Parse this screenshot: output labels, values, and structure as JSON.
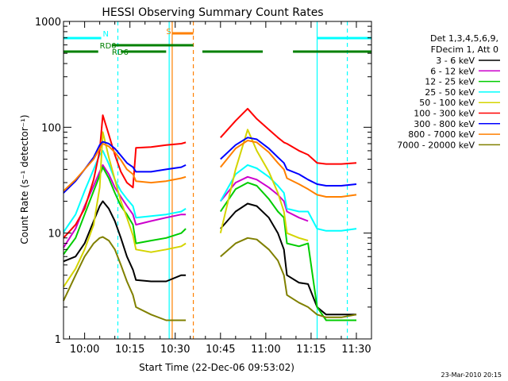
{
  "chart_data": {
    "type": "line",
    "title": "HESSI Observing Summary Count Rates",
    "xlabel": "Start Time (22-Dec-06 09:53:02)",
    "ylabel": "Count Rate (s⁻¹ detector⁻¹)",
    "yscale": "log",
    "ylim": [
      1,
      1000
    ],
    "xlim_min": [
      -7,
      95
    ],
    "grid": false,
    "legend_position": "right",
    "x_ticks": [
      {
        "t": 0,
        "label": "10:00"
      },
      {
        "t": 15,
        "label": "10:15"
      },
      {
        "t": 30,
        "label": "10:30"
      },
      {
        "t": 45,
        "label": "10:45"
      },
      {
        "t": 60,
        "label": "11:00"
      },
      {
        "t": 75,
        "label": "11:15"
      },
      {
        "t": 90,
        "label": "11:30"
      }
    ],
    "y_ticks": [
      {
        "v": 1,
        "label": "1"
      },
      {
        "v": 10,
        "label": "10"
      },
      {
        "v": 100,
        "label": "100"
      },
      {
        "v": 1000,
        "label": "1000"
      }
    ],
    "legend": {
      "header_line1": "Det 1,3,4,5,6,9,",
      "header_line2": "FDecim 1, Att 0"
    },
    "series": [
      {
        "name": "3 - 6 keV",
        "color": "#000000",
        "x": [
          -7,
          -3,
          0,
          3,
          5,
          6,
          8,
          10,
          12,
          14,
          16,
          17,
          22,
          27,
          32,
          33.5,
          36,
          40,
          43,
          45,
          50,
          54,
          57,
          61,
          64,
          66,
          67,
          71,
          74,
          77,
          80,
          85,
          90
        ],
        "y": [
          5.4,
          6,
          8,
          13,
          18,
          20,
          17,
          13,
          9,
          6,
          4.5,
          3.6,
          3.5,
          3.5,
          4,
          4,
          null,
          null,
          null,
          11,
          16,
          19,
          18,
          14,
          10,
          7,
          4,
          3.4,
          3.3,
          2,
          1.7,
          1.7,
          1.7
        ]
      },
      {
        "name": "6 - 12 keV",
        "color": "#cc00cc",
        "x": [
          -7,
          -3,
          0,
          3,
          5,
          6,
          8,
          10,
          12,
          14,
          16,
          17,
          22,
          27,
          32,
          33.5,
          36,
          40,
          43,
          45,
          50,
          54,
          57,
          61,
          64,
          66,
          67,
          71,
          74,
          77,
          80,
          85,
          90
        ],
        "y": [
          7.3,
          11,
          18,
          28,
          38,
          44,
          36,
          27,
          22,
          18,
          15,
          12,
          13,
          14,
          15,
          15,
          null,
          null,
          null,
          20,
          30,
          34,
          32,
          27,
          23,
          20,
          16,
          14,
          13,
          null,
          null,
          null,
          null
        ]
      },
      {
        "name": "12 - 25 keV",
        "color": "#00cc00",
        "x": [
          -7,
          -3,
          0,
          3,
          5,
          6,
          8,
          10,
          12,
          14,
          16,
          17,
          22,
          27,
          32,
          33.5,
          36,
          40,
          43,
          45,
          50,
          54,
          57,
          61,
          64,
          66,
          67,
          71,
          74,
          77,
          80,
          85,
          90
        ],
        "y": [
          6.3,
          9,
          15,
          25,
          35,
          42,
          33,
          24,
          18,
          15,
          12,
          8,
          8.5,
          9,
          10,
          11,
          null,
          null,
          null,
          16,
          26,
          30,
          28,
          21,
          16,
          14,
          8,
          7.5,
          8,
          2,
          1.5,
          1.5,
          1.5
        ]
      },
      {
        "name": "25 - 50 keV",
        "color": "#00ffff",
        "x": [
          -7,
          -3,
          0,
          3,
          5,
          6,
          8,
          10,
          12,
          14,
          16,
          17,
          22,
          27,
          32,
          33.5,
          36,
          40,
          43,
          45,
          50,
          54,
          57,
          61,
          64,
          66,
          67,
          71,
          74,
          77,
          80,
          85,
          90
        ],
        "y": [
          10.2,
          15,
          25,
          40,
          55,
          60,
          45,
          32,
          25,
          21,
          18,
          14,
          14.5,
          15,
          16,
          17,
          null,
          null,
          null,
          20,
          36,
          44,
          41,
          34,
          28,
          24,
          17,
          16,
          16,
          11,
          10.5,
          10.5,
          11
        ]
      },
      {
        "name": "50 - 100 keV",
        "color": "#d4d400",
        "x": [
          -7,
          -3,
          0,
          3,
          5,
          6,
          8,
          10,
          12,
          14,
          16,
          17,
          22,
          27,
          32,
          33.5,
          36,
          40,
          43,
          45,
          50,
          54,
          57,
          61,
          64,
          66,
          67,
          71,
          74,
          77,
          80,
          85,
          90
        ],
        "y": [
          3.1,
          4.6,
          7,
          12,
          27,
          90,
          52,
          32,
          20,
          14,
          9.5,
          7,
          6.6,
          7,
          7.5,
          8,
          null,
          null,
          null,
          10,
          40,
          95,
          60,
          38,
          24,
          16,
          10,
          9,
          8.5,
          null,
          null,
          null,
          null
        ]
      },
      {
        "name": "100 - 300 keV",
        "color": "#ff0000",
        "x": [
          -7,
          -3,
          0,
          3,
          5,
          6,
          8,
          10,
          12,
          14,
          16,
          17,
          22,
          27,
          32,
          33.5,
          36,
          40,
          43,
          45,
          50,
          54,
          57,
          61,
          64,
          66,
          67,
          71,
          74,
          77,
          80,
          85,
          90
        ],
        "y": [
          9,
          12,
          17,
          32,
          60,
          130,
          85,
          55,
          38,
          30,
          27,
          64,
          65,
          68,
          70,
          72,
          null,
          null,
          null,
          80,
          115,
          150,
          120,
          95,
          80,
          72,
          70,
          60,
          55,
          46,
          45,
          45,
          46
        ]
      },
      {
        "name": "300 - 800 keV",
        "color": "#0000ff",
        "x": [
          -7,
          -3,
          0,
          3,
          5,
          6,
          8,
          10,
          12,
          14,
          16,
          17,
          22,
          27,
          32,
          33.5,
          36,
          40,
          43,
          45,
          50,
          54,
          57,
          61,
          64,
          66,
          67,
          71,
          74,
          77,
          80,
          85,
          90
        ],
        "y": [
          24,
          31,
          40,
          52,
          68,
          73,
          70,
          63,
          54,
          46,
          42,
          38,
          38,
          40,
          42,
          44,
          null,
          null,
          null,
          50,
          68,
          80,
          77,
          63,
          52,
          46,
          40,
          36,
          32,
          29,
          28,
          28,
          29
        ]
      },
      {
        "name": "800 - 7000 keV",
        "color": "#ff8000",
        "x": [
          -7,
          -3,
          0,
          3,
          5,
          6,
          8,
          10,
          12,
          14,
          16,
          17,
          22,
          27,
          32,
          33.5,
          36,
          40,
          43,
          45,
          50,
          54,
          57,
          61,
          64,
          66,
          67,
          71,
          74,
          77,
          80,
          85,
          90
        ],
        "y": [
          25,
          32,
          40,
          50,
          63,
          70,
          66,
          58,
          49,
          40,
          36,
          31,
          30,
          31,
          33,
          34,
          null,
          null,
          null,
          42,
          63,
          75,
          72,
          58,
          46,
          40,
          33,
          29,
          26,
          23,
          22,
          22,
          23
        ]
      },
      {
        "name": "7000 - 20000 keV",
        "color": "#808000",
        "x": [
          -7,
          -3,
          0,
          3,
          5,
          6,
          8,
          10,
          12,
          14,
          16,
          17,
          22,
          27,
          32,
          33.5,
          36,
          40,
          43,
          45,
          50,
          54,
          57,
          61,
          64,
          66,
          67,
          71,
          74,
          77,
          80,
          85,
          90
        ],
        "y": [
          2.3,
          4,
          6,
          8,
          9,
          9.2,
          8.5,
          7,
          5,
          3.5,
          2.6,
          2,
          1.7,
          1.5,
          1.5,
          1.5,
          null,
          null,
          null,
          6,
          8,
          9,
          8.7,
          7,
          5.5,
          4,
          2.6,
          2.2,
          2,
          1.7,
          1.6,
          1.6,
          1.7
        ]
      }
    ],
    "flag_bars": [
      {
        "label": "N",
        "color": "#00ffff",
        "segments": [
          [
            -7,
            5.5
          ],
          [
            77,
            95
          ]
        ]
      },
      {
        "label": "RD0",
        "color": "#008000",
        "segments": [
          [
            -7,
            4.5
          ],
          [
            12,
            27
          ],
          [
            39,
            59
          ],
          [
            69,
            95
          ]
        ]
      },
      {
        "label": "RD6",
        "color": "#008000",
        "segments": [
          [
            9,
            36
          ]
        ]
      },
      {
        "label": "S",
        "color": "#ff8000",
        "segments": [
          [
            29,
            36
          ]
        ]
      }
    ],
    "vlines": [
      {
        "t": 28,
        "color": "#00ffff",
        "style": "solid"
      },
      {
        "t": 11,
        "color": "#00ffff",
        "style": "dashed"
      },
      {
        "t": 77,
        "color": "#00ffff",
        "style": "solid"
      },
      {
        "t": 87,
        "color": "#00ffff",
        "style": "dashed"
      },
      {
        "t": 29,
        "color": "#ff8000",
        "style": "solid"
      },
      {
        "t": 36,
        "color": "#ff8000",
        "style": "dashed"
      }
    ],
    "timestamp": "23-Mar-2010 20:15"
  }
}
